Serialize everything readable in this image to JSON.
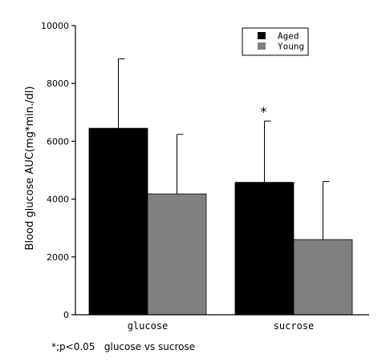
{
  "chart_data": {
    "type": "bar",
    "categories": [
      "glucose",
      "sucrose"
    ],
    "series": [
      {
        "name": "Aged",
        "color": "#000000",
        "values": [
          6450,
          4580
        ],
        "error": [
          2400,
          2120
        ]
      },
      {
        "name": "Young",
        "color": "#808080",
        "values": [
          4180,
          2600
        ],
        "error": [
          2060,
          2010
        ]
      }
    ],
    "ylabel": "Blood glucose AUC(mg*min./dl)",
    "ylim": [
      0,
      10000
    ],
    "yticks": [
      0,
      2000,
      4000,
      6000,
      8000,
      10000
    ],
    "grid": false,
    "legend_position": "top-right",
    "annotations": [
      {
        "text": "*",
        "category": "sucrose",
        "series": "Aged"
      }
    ],
    "footnote": "*;p<0.05   glucose vs sucrose"
  }
}
